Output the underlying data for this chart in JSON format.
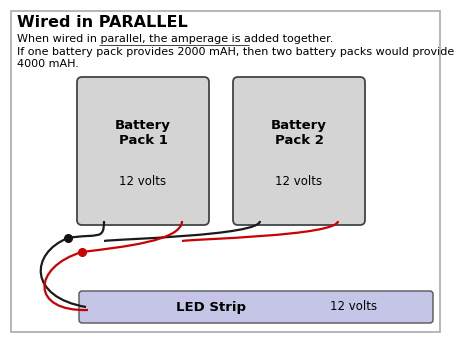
{
  "title": "Wired in PARALLEL",
  "sub1a": "When wired in parallel, the ",
  "sub1b": "amperage is added together",
  "sub1c": ".",
  "sub2": "If one battery pack provides 2000 mAH, then two battery packs would provide",
  "sub3": "4000 mAH.",
  "battery1_label": "Battery\nPack 1",
  "battery1_volts": "12 volts",
  "battery2_label": "Battery\nPack 2",
  "battery2_volts": "12 volts",
  "led_label": "LED Strip",
  "led_volts": "12 volts",
  "bg_color": "#ffffff",
  "battery_fill": "#d4d4d4",
  "battery_edge": "#444444",
  "led_fill": "#c5c5e8",
  "led_edge": "#555555",
  "wire_black": "#1a1a1a",
  "wire_red": "#cc0000",
  "dot_black": "#111111",
  "dot_red": "#cc0000",
  "border_color": "#aaaaaa"
}
